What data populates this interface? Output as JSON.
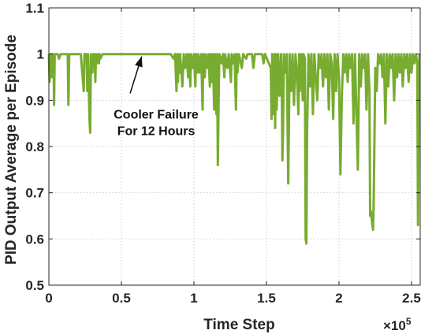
{
  "chart_data": {
    "type": "line",
    "title": "",
    "xlabel": "Time Step",
    "ylabel": "PID Output Average per Episode",
    "x_exponent_label": "×10",
    "x_exponent_power": "5",
    "xlim": [
      0,
      2.56
    ],
    "ylim": [
      0.5,
      1.1
    ],
    "x_scale_factor": 100000,
    "xticks": [
      0,
      0.5,
      1,
      1.5,
      2,
      2.5
    ],
    "xtick_labels": [
      "0",
      "0.5",
      "1",
      "1.5",
      "2",
      "2.5"
    ],
    "yticks": [
      0.5,
      0.6,
      0.7,
      0.8,
      0.9,
      1.0,
      1.1
    ],
    "ytick_labels": [
      "0.5",
      "0.6",
      "0.7",
      "0.8",
      "0.9",
      "1",
      "1.1"
    ],
    "grid": true,
    "series": [
      {
        "color": "#77ac30",
        "points": [
          [
            0.0,
            1.0
          ],
          [
            0.005,
            0.94
          ],
          [
            0.01,
            1.0
          ],
          [
            0.018,
            0.95
          ],
          [
            0.024,
            1.0
          ],
          [
            0.028,
            0.97
          ],
          [
            0.032,
            1.0
          ],
          [
            0.036,
            0.89
          ],
          [
            0.04,
            1.0
          ],
          [
            0.06,
            1.0
          ],
          [
            0.07,
            0.99
          ],
          [
            0.08,
            1.0
          ],
          [
            0.13,
            1.0
          ],
          [
            0.135,
            0.89
          ],
          [
            0.14,
            1.0
          ],
          [
            0.22,
            1.0
          ],
          [
            0.24,
            0.92
          ],
          [
            0.245,
            1.0
          ],
          [
            0.26,
            1.0
          ],
          [
            0.265,
            0.92
          ],
          [
            0.27,
            1.0
          ],
          [
            0.28,
            0.86
          ],
          [
            0.285,
            0.83
          ],
          [
            0.29,
            1.0
          ],
          [
            0.3,
            0.96
          ],
          [
            0.305,
            1.0
          ],
          [
            0.31,
            0.97
          ],
          [
            0.315,
            1.0
          ],
          [
            0.32,
            0.94
          ],
          [
            0.325,
            1.0
          ],
          [
            0.33,
            0.98
          ],
          [
            0.34,
            1.0
          ],
          [
            0.345,
            0.98
          ],
          [
            0.35,
            1.0
          ],
          [
            0.355,
            0.99
          ],
          [
            0.37,
            1.0
          ],
          [
            0.84,
            1.0
          ],
          [
            0.86,
            0.99
          ],
          [
            0.87,
            1.0
          ],
          [
            0.88,
            0.92
          ],
          [
            0.885,
            1.0
          ],
          [
            0.89,
            0.94
          ],
          [
            0.895,
            1.0
          ],
          [
            0.9,
            0.96
          ],
          [
            0.905,
            1.0
          ],
          [
            0.92,
            0.93
          ],
          [
            0.93,
            1.0
          ],
          [
            0.94,
            0.97
          ],
          [
            0.95,
            1.0
          ],
          [
            0.96,
            0.95
          ],
          [
            0.965,
            1.0
          ],
          [
            0.975,
            0.93
          ],
          [
            0.98,
            1.0
          ],
          [
            0.99,
            0.97
          ],
          [
            1.0,
            1.0
          ],
          [
            1.01,
            0.93
          ],
          [
            1.015,
            1.0
          ],
          [
            1.025,
            0.96
          ],
          [
            1.03,
            1.0
          ],
          [
            1.04,
            0.96
          ],
          [
            1.05,
            1.0
          ],
          [
            1.06,
            0.88
          ],
          [
            1.065,
            1.0
          ],
          [
            1.075,
            0.95
          ],
          [
            1.08,
            1.0
          ],
          [
            1.09,
            0.97
          ],
          [
            1.1,
            1.0
          ],
          [
            1.11,
            0.93
          ],
          [
            1.115,
            1.0
          ],
          [
            1.125,
            0.94
          ],
          [
            1.13,
            1.0
          ],
          [
            1.14,
            0.88
          ],
          [
            1.145,
            1.0
          ],
          [
            1.155,
            0.87
          ],
          [
            1.16,
            1.0
          ],
          [
            1.165,
            0.76
          ],
          [
            1.17,
            0.9
          ],
          [
            1.175,
            1.0
          ],
          [
            1.19,
            0.98
          ],
          [
            1.2,
            1.0
          ],
          [
            1.21,
            0.95
          ],
          [
            1.215,
            1.0
          ],
          [
            1.23,
            0.97
          ],
          [
            1.24,
            1.0
          ],
          [
            1.255,
            0.94
          ],
          [
            1.26,
            1.0
          ],
          [
            1.27,
            0.98
          ],
          [
            1.28,
            1.0
          ],
          [
            1.29,
            0.88
          ],
          [
            1.295,
            1.0
          ],
          [
            1.3,
            0.96
          ],
          [
            1.31,
            1.0
          ],
          [
            1.33,
            0.97
          ],
          [
            1.34,
            1.0
          ],
          [
            1.36,
            0.99
          ],
          [
            1.37,
            1.0
          ],
          [
            1.4,
            1.0
          ],
          [
            1.41,
            0.97
          ],
          [
            1.42,
            1.0
          ],
          [
            1.47,
            1.0
          ],
          [
            1.48,
            0.98
          ],
          [
            1.49,
            1.0
          ],
          [
            1.53,
            0.97
          ],
          [
            1.535,
            0.86
          ],
          [
            1.54,
            1.0
          ],
          [
            1.55,
            0.87
          ],
          [
            1.555,
            1.0
          ],
          [
            1.56,
            0.84
          ],
          [
            1.565,
            1.0
          ],
          [
            1.57,
            0.88
          ],
          [
            1.58,
            1.0
          ],
          [
            1.59,
            0.91
          ],
          [
            1.6,
            1.0
          ],
          [
            1.605,
            0.95
          ],
          [
            1.61,
            0.77
          ],
          [
            1.615,
            0.84
          ],
          [
            1.62,
            1.0
          ],
          [
            1.63,
            0.96
          ],
          [
            1.64,
            1.0
          ],
          [
            1.65,
            0.72
          ],
          [
            1.655,
            0.85
          ],
          [
            1.66,
            1.0
          ],
          [
            1.67,
            0.92
          ],
          [
            1.68,
            1.0
          ],
          [
            1.69,
            0.89
          ],
          [
            1.7,
            1.0
          ],
          [
            1.71,
            0.96
          ],
          [
            1.72,
            0.87
          ],
          [
            1.725,
            1.0
          ],
          [
            1.73,
            0.92
          ],
          [
            1.74,
            1.0
          ],
          [
            1.75,
            0.9
          ],
          [
            1.755,
            1.0
          ],
          [
            1.765,
            0.99
          ],
          [
            1.77,
            0.6
          ],
          [
            1.775,
            0.59
          ],
          [
            1.78,
            0.83
          ],
          [
            1.79,
            1.0
          ],
          [
            1.8,
            0.93
          ],
          [
            1.81,
            1.0
          ],
          [
            1.82,
            0.87
          ],
          [
            1.83,
            1.0
          ],
          [
            1.84,
            0.95
          ],
          [
            1.85,
            0.9
          ],
          [
            1.86,
            1.0
          ],
          [
            1.87,
            0.97
          ],
          [
            1.88,
            1.0
          ],
          [
            1.89,
            0.93
          ],
          [
            1.9,
            1.0
          ],
          [
            1.91,
            0.95
          ],
          [
            1.92,
            1.0
          ],
          [
            1.93,
            0.88
          ],
          [
            1.94,
            1.0
          ],
          [
            1.95,
            0.98
          ],
          [
            1.96,
            0.86
          ],
          [
            1.97,
            1.0
          ],
          [
            1.98,
            0.92
          ],
          [
            1.99,
            1.0
          ],
          [
            2.0,
            0.95
          ],
          [
            2.01,
            0.74
          ],
          [
            2.02,
            0.91
          ],
          [
            2.03,
            1.0
          ],
          [
            2.04,
            0.96
          ],
          [
            2.05,
            1.0
          ],
          [
            2.06,
            0.94
          ],
          [
            2.07,
            1.0
          ],
          [
            2.08,
            0.97
          ],
          [
            2.09,
            1.0
          ],
          [
            2.1,
            0.85
          ],
          [
            2.11,
            1.0
          ],
          [
            2.13,
            0.75
          ],
          [
            2.14,
            1.0
          ],
          [
            2.15,
            0.93
          ],
          [
            2.16,
            1.0
          ],
          [
            2.17,
            0.97
          ],
          [
            2.18,
            1.0
          ],
          [
            2.19,
            0.88
          ],
          [
            2.2,
            1.0
          ],
          [
            2.21,
            0.92
          ],
          [
            2.215,
            0.65
          ],
          [
            2.22,
            0.66
          ],
          [
            2.23,
            0.63
          ],
          [
            2.235,
            0.62
          ],
          [
            2.24,
            0.69
          ],
          [
            2.25,
            0.97
          ],
          [
            2.26,
            0.92
          ],
          [
            2.27,
            1.0
          ],
          [
            2.28,
            0.98
          ],
          [
            2.29,
            1.0
          ],
          [
            2.3,
            0.95
          ],
          [
            2.31,
            1.0
          ],
          [
            2.32,
            0.85
          ],
          [
            2.33,
            1.0
          ],
          [
            2.34,
            0.93
          ],
          [
            2.35,
            1.0
          ],
          [
            2.36,
            0.97
          ],
          [
            2.37,
            1.0
          ],
          [
            2.38,
            0.9
          ],
          [
            2.39,
            1.0
          ],
          [
            2.4,
            0.95
          ],
          [
            2.41,
            1.0
          ],
          [
            2.42,
            0.96
          ],
          [
            2.43,
            1.0
          ],
          [
            2.44,
            0.93
          ],
          [
            2.45,
            1.0
          ],
          [
            2.46,
            0.97
          ],
          [
            2.47,
            1.0
          ],
          [
            2.48,
            0.94
          ],
          [
            2.49,
            1.0
          ],
          [
            2.5,
            0.96
          ],
          [
            2.51,
            1.0
          ],
          [
            2.52,
            0.98
          ],
          [
            2.53,
            1.0
          ],
          [
            2.54,
            0.98
          ],
          [
            2.545,
            0.63
          ],
          [
            2.55,
            0.95
          ],
          [
            2.555,
            1.0
          ]
        ]
      }
    ],
    "annotation": {
      "lines": [
        "Cooler Failure",
        "For 12 Hours"
      ],
      "arrow_tip": [
        0.64,
        0.995
      ],
      "arrow_tail": [
        0.56,
        0.915
      ]
    }
  }
}
